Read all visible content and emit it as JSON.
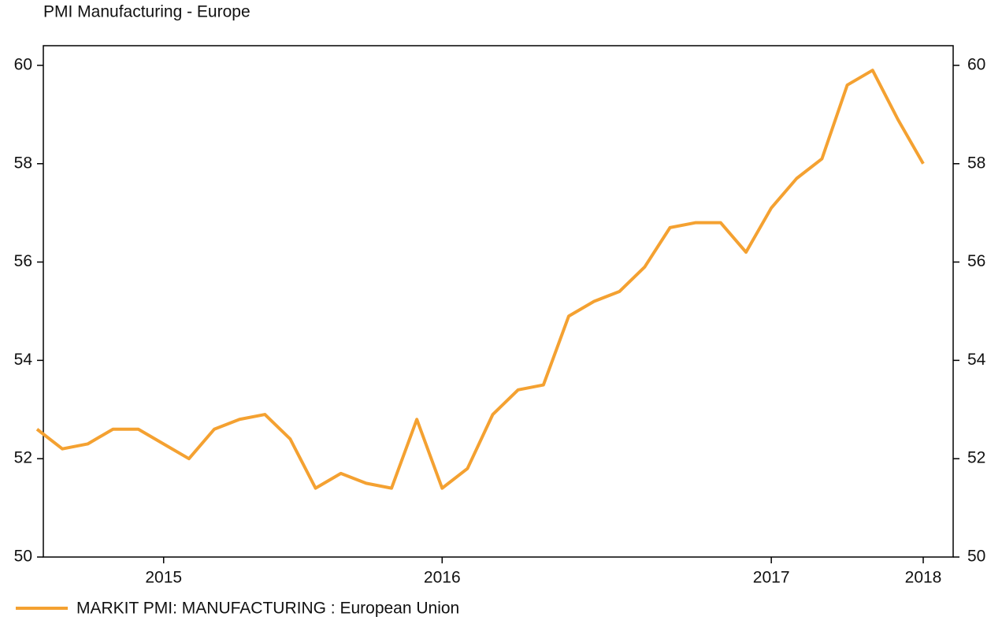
{
  "chart_data": {
    "type": "line",
    "title": "PMI Manufacturing - Europe",
    "categories": [
      null,
      null,
      null,
      null,
      null,
      "2015",
      null,
      null,
      null,
      null,
      null,
      null,
      null,
      null,
      null,
      null,
      "2016",
      null,
      null,
      null,
      null,
      null,
      null,
      null,
      null,
      null,
      null,
      null,
      null,
      "2017",
      null,
      null,
      null,
      null,
      null,
      "2018"
    ],
    "series": [
      {
        "name": "MARKIT PMI: MANUFACTURING : European Union",
        "color": "#f4a131",
        "values": [
          52.6,
          52.2,
          52.3,
          52.6,
          52.6,
          52.3,
          52.0,
          52.6,
          52.8,
          52.9,
          52.4,
          51.4,
          51.7,
          51.5,
          51.4,
          52.8,
          51.4,
          51.8,
          52.9,
          53.4,
          53.5,
          54.9,
          55.2,
          55.4,
          55.9,
          56.7,
          56.8,
          56.8,
          56.2,
          57.1,
          57.7,
          58.1,
          59.6,
          59.9,
          58.9,
          58.0
        ]
      }
    ],
    "ylim": [
      50,
      60.4
    ],
    "yticks": [
      50,
      52,
      54,
      56,
      58,
      60
    ],
    "y2lim": [
      50,
      60.4
    ],
    "y2ticks": [
      50,
      52,
      54,
      56,
      58,
      60
    ]
  }
}
